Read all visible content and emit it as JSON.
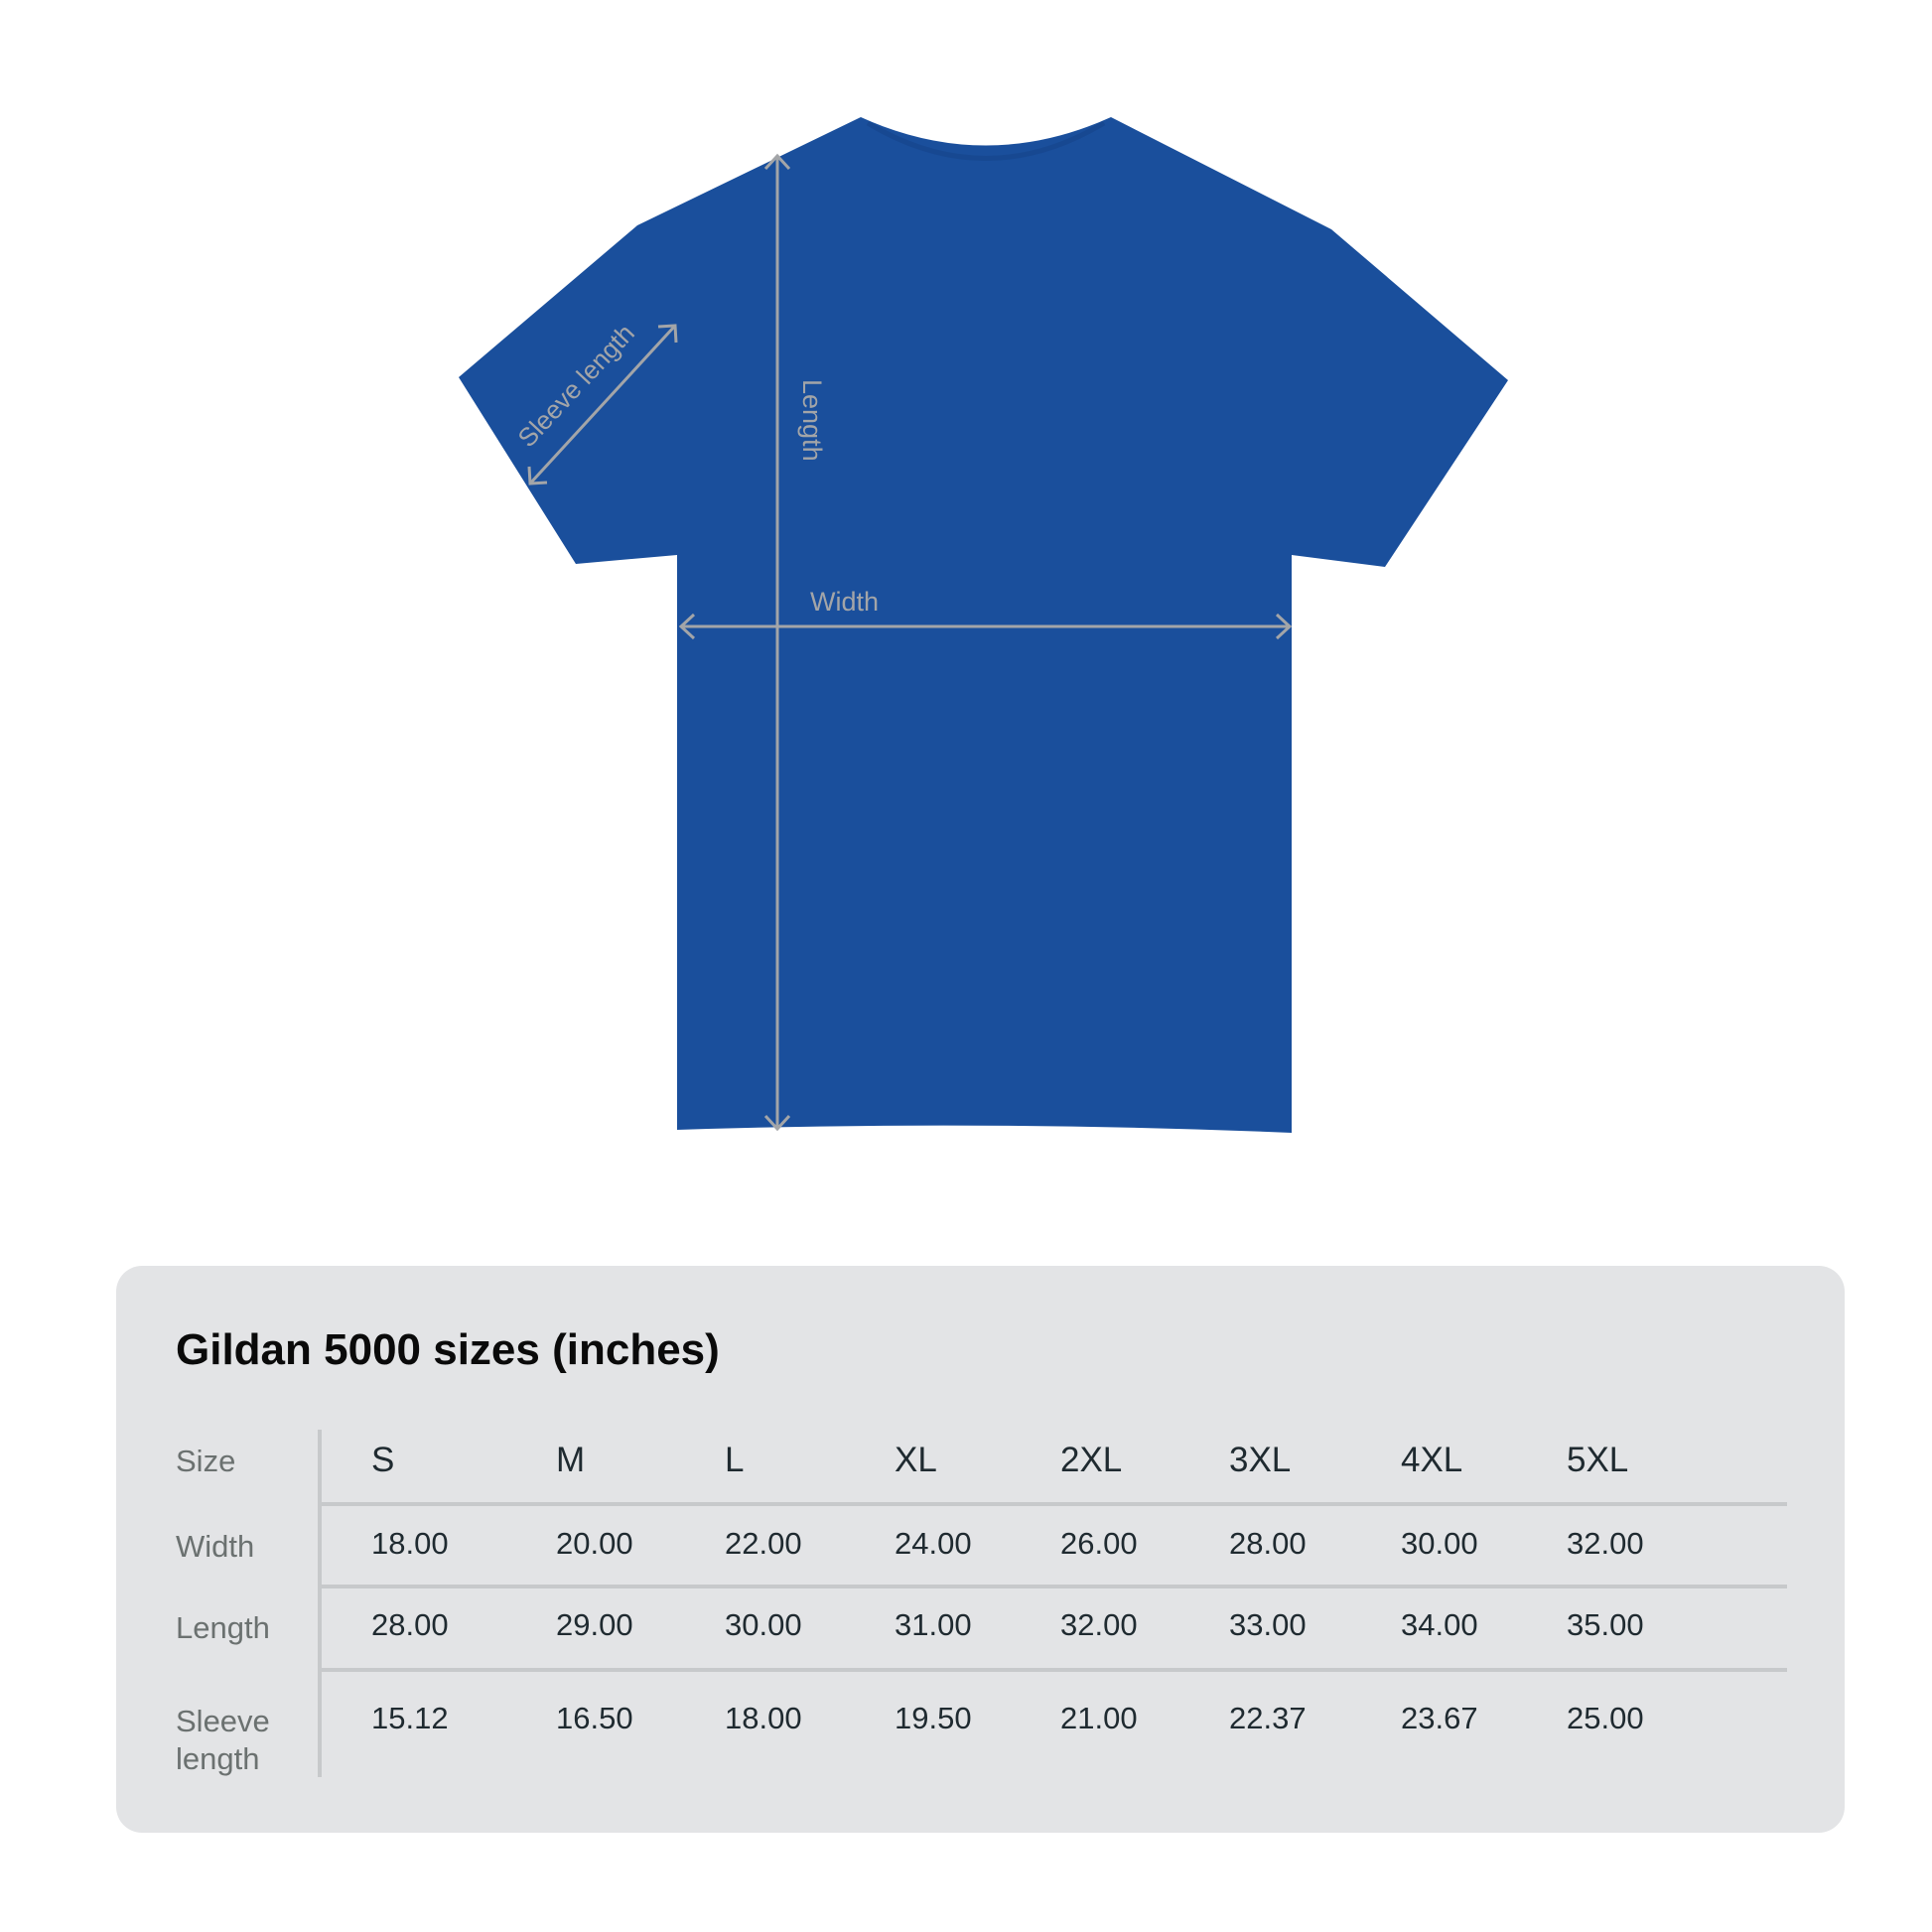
{
  "diagram": {
    "shirt_color": "#1a4f9c",
    "measure_color": "#a3a5a8",
    "labels": {
      "sleeve": "Sleeve length",
      "length": "Length",
      "width": "Width"
    }
  },
  "table": {
    "title": "Gildan 5000 sizes (inches)",
    "row_labels": [
      "Size",
      "Width",
      "Length",
      "Sleeve length"
    ],
    "sizes": [
      "S",
      "M",
      "L",
      "XL",
      "2XL",
      "3XL",
      "4XL",
      "5XL"
    ],
    "width": [
      "18.00",
      "20.00",
      "22.00",
      "24.00",
      "26.00",
      "28.00",
      "30.00",
      "32.00"
    ],
    "length": [
      "28.00",
      "29.00",
      "30.00",
      "31.00",
      "32.00",
      "33.00",
      "34.00",
      "35.00"
    ],
    "sleeve": [
      "15.12",
      "16.50",
      "18.00",
      "19.50",
      "21.00",
      "22.37",
      "23.67",
      "25.00"
    ]
  }
}
